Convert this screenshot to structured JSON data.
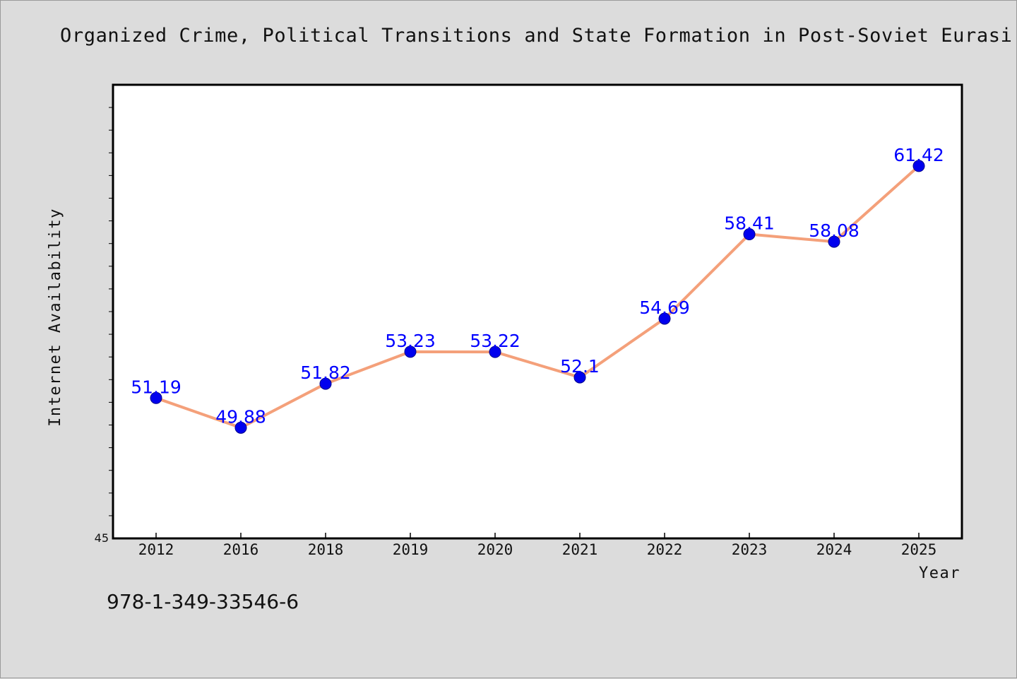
{
  "title": "Organized Crime, Political Transitions and State Formation in Post-Soviet Eurasi",
  "footer": {
    "isbn": "978-1-349-33546-6"
  },
  "colors": {
    "line": "#f4a07a",
    "marker": "#0000ee",
    "label": "#0000ff",
    "background": "#dcdcdc",
    "plot_bg": "#ffffff"
  },
  "chart_data": {
    "type": "line",
    "categories": [
      "2012",
      "2016",
      "2018",
      "2019",
      "2020",
      "2021",
      "2022",
      "2023",
      "2024",
      "2025"
    ],
    "values": [
      51.19,
      49.88,
      51.82,
      53.23,
      53.22,
      52.1,
      54.69,
      58.41,
      58.08,
      61.42
    ],
    "data_labels": [
      "51.19",
      "49.88",
      "51.82",
      "53.23",
      "53.22",
      "52.1",
      "54.69",
      "58.41",
      "58.08",
      "61.42"
    ],
    "xlabel": "Year",
    "ylabel": "Internet Availability",
    "ylim": [
      45,
      65
    ],
    "y_tick_labels": [
      "45"
    ],
    "grid": false,
    "legend": "none"
  }
}
